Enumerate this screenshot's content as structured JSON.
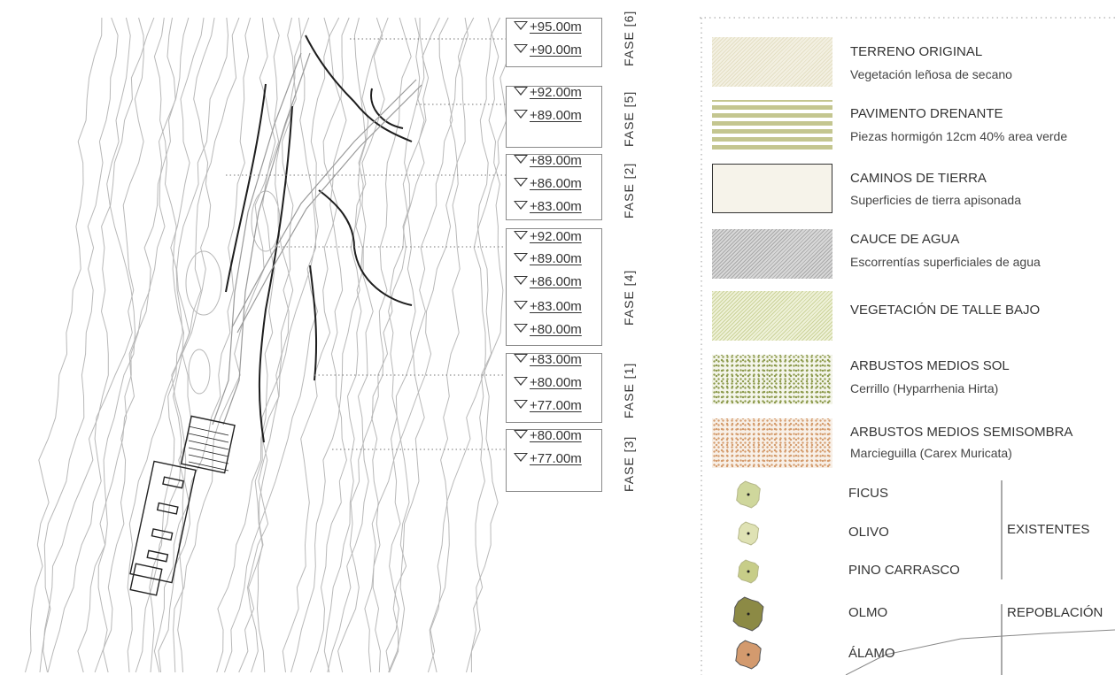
{
  "phases": [
    {
      "label": "FASE [6]",
      "elevations": [
        "+95.00m",
        "+90.00m"
      ]
    },
    {
      "label": "FASE [5]",
      "elevations": [
        "+92.00m",
        "+89.00m"
      ]
    },
    {
      "label": "FASE [2]",
      "elevations": [
        "+89.00m",
        "+86.00m",
        "+83.00m"
      ]
    },
    {
      "label": "FASE [4]",
      "elevations": [
        "+92.00m",
        "+89.00m",
        "+86.00m",
        "+83.00m",
        "+80.00m"
      ]
    },
    {
      "label": "FASE [1]",
      "elevations": [
        "+83.00m",
        "+80.00m",
        "+77.00m"
      ]
    },
    {
      "label": "FASE [3]",
      "elevations": [
        "+80.00m",
        "+77.00m"
      ]
    }
  ],
  "legend": {
    "materials": [
      {
        "title": "TERRENO ORIGINAL",
        "subtitle": "Vegetación leñosa de secano",
        "color": "#e4dfc4"
      },
      {
        "title": "PAVIMENTO DRENANTE",
        "subtitle": "Piezas hormigón 12cm 40% area verde",
        "color": "#c4c690"
      },
      {
        "title": "CAMINOS DE TIERRA",
        "subtitle": "Superficies de tierra apisonada",
        "color": "#f6f3ea"
      },
      {
        "title": "CAUCE DE AGUA",
        "subtitle": "Escorrentías superficiales de agua",
        "color": "#a9a9a9"
      },
      {
        "title": "VEGETACIÓN DE TALLE BAJO",
        "subtitle": "",
        "color": "#ccd39a"
      },
      {
        "title": "ARBUSTOS MEDIOS SOL",
        "subtitle": "Cerrillo (Hyparrhenia Hirta)",
        "color": "#8c9a4c"
      },
      {
        "title": "ARBUSTOS  MEDIOS SEMISOMBRA",
        "subtitle": "Marcieguilla (Carex Muricata)",
        "color": "#d49b6c"
      }
    ],
    "trees": [
      {
        "name": "FICUS",
        "color": "#cfd79c"
      },
      {
        "name": "OLIVO",
        "color": "#dfe2b4"
      },
      {
        "name": "PINO CARRASCO",
        "color": "#c7cd88"
      },
      {
        "name": "OLMO",
        "color": "#8c8a45"
      },
      {
        "name": "ÁLAMO",
        "color": "#d39a6e"
      }
    ],
    "groups": {
      "existing": "EXISTENTES",
      "reforestation": "REPOBLACIÓN"
    }
  }
}
